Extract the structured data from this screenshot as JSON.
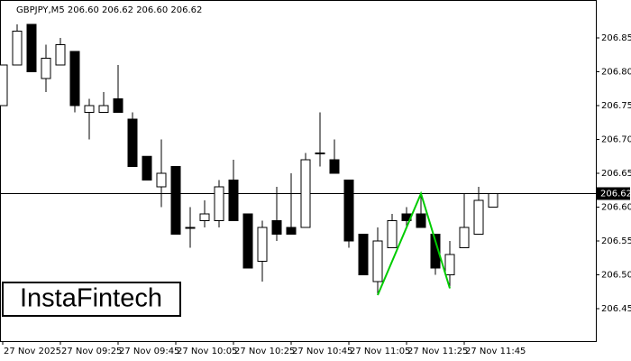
{
  "chart_data": {
    "type": "candlestick",
    "header": "GBPJPY,M5  206.60 206.62 206.60 206.62",
    "watermark": "InstaFintech",
    "categories": [
      "27 Nov 2025",
      null,
      null,
      null,
      "27 Nov 09:25",
      null,
      null,
      null,
      "27 Nov 09:45",
      null,
      null,
      null,
      "27 Nov 10:05",
      null,
      null,
      null,
      "27 Nov 10:25",
      null,
      null,
      null,
      "27 Nov 10:45",
      null,
      null,
      null,
      "27 Nov 11:05",
      null,
      null,
      null,
      "27 Nov 11:25",
      null,
      null,
      null,
      "27 Nov 11:45",
      null,
      null
    ],
    "open": [
      206.75,
      206.81,
      206.87,
      206.79,
      206.81,
      206.83,
      206.74,
      206.74,
      206.76,
      206.73,
      206.675,
      206.63,
      206.66,
      206.57,
      206.58,
      206.58,
      206.64,
      206.59,
      206.52,
      206.58,
      206.57,
      206.57,
      206.68,
      206.67,
      206.64,
      206.56,
      206.49,
      206.54,
      206.59,
      206.59,
      206.56,
      206.5,
      206.54,
      206.56,
      206.6
    ],
    "high": [
      206.81,
      206.87,
      206.87,
      206.84,
      206.85,
      206.83,
      206.76,
      206.77,
      206.81,
      206.74,
      206.675,
      206.7,
      206.66,
      206.6,
      206.61,
      206.64,
      206.67,
      206.59,
      206.58,
      206.63,
      206.65,
      206.68,
      206.74,
      206.7,
      206.64,
      206.56,
      206.57,
      206.59,
      206.6,
      206.62,
      206.56,
      206.55,
      206.62,
      206.63,
      206.62
    ],
    "low": [
      206.75,
      206.81,
      206.8,
      206.77,
      206.81,
      206.74,
      206.7,
      206.74,
      206.74,
      206.66,
      206.64,
      206.6,
      206.56,
      206.54,
      206.57,
      206.57,
      206.58,
      206.51,
      206.49,
      206.55,
      206.56,
      206.57,
      206.66,
      206.65,
      206.54,
      206.5,
      206.47,
      206.54,
      206.57,
      206.57,
      206.5,
      206.48,
      206.54,
      206.56,
      206.6
    ],
    "close": [
      206.81,
      206.86,
      206.8,
      206.82,
      206.84,
      206.75,
      206.75,
      206.75,
      206.74,
      206.66,
      206.64,
      206.65,
      206.56,
      206.57,
      206.59,
      206.63,
      206.58,
      206.51,
      206.57,
      206.56,
      206.56,
      206.67,
      206.68,
      206.65,
      206.55,
      206.5,
      206.55,
      206.58,
      206.58,
      206.57,
      206.51,
      206.53,
      206.57,
      206.61,
      206.62
    ],
    "up_color": "#ffffff",
    "down_color": "#000000",
    "ylim": [
      206.402,
      206.906
    ],
    "yticks": [
      206.45,
      {
        "value": 206.5,
        "label": "206.50"
      },
      206.55,
      {
        "value": 206.6,
        "label": "206.60"
      },
      206.65,
      {
        "value": 206.7,
        "label": "206.70"
      },
      206.75,
      {
        "value": 206.8,
        "label": "206.80"
      },
      206.85
    ],
    "current_price": {
      "value": 206.62,
      "label": "206.62"
    },
    "pattern": {
      "color": "#00cc00",
      "x": [
        26,
        29,
        31
      ],
      "values": [
        206.47,
        206.62,
        206.48
      ]
    }
  }
}
